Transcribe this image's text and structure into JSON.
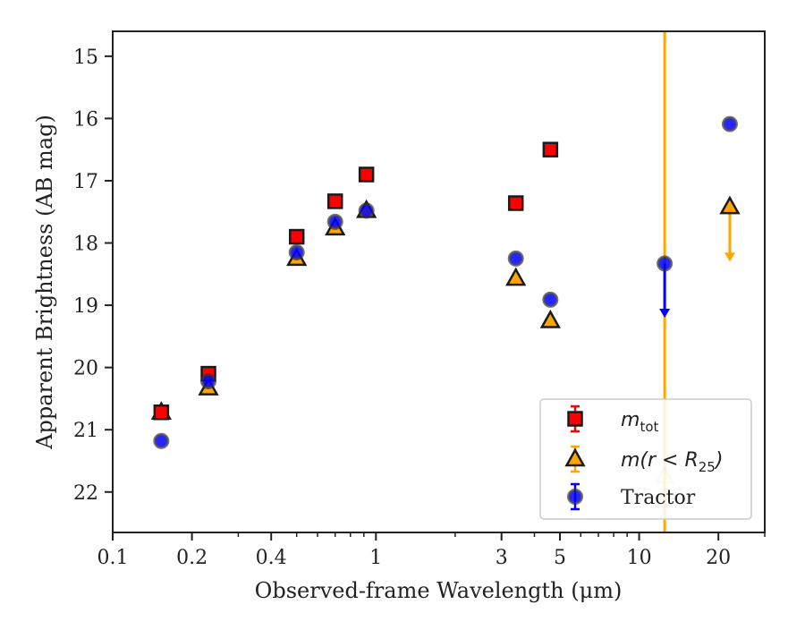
{
  "chart_data": {
    "type": "scatter",
    "xlabel": "Observed-frame Wavelength (μm)",
    "ylabel": "Apparent Brightness (AB mag)",
    "xscale": "log",
    "xlim": [
      0.1,
      30
    ],
    "ylim": [
      22.65,
      14.6
    ],
    "y_inverted": true,
    "x_tick_labels": [
      {
        "value": 0.1,
        "label": "0.1"
      },
      {
        "value": 0.2,
        "label": "0.2"
      },
      {
        "value": 0.4,
        "label": "0.4"
      },
      {
        "value": 1,
        "label": "1"
      },
      {
        "value": 3,
        "label": "3"
      },
      {
        "value": 5,
        "label": "5"
      },
      {
        "value": 10,
        "label": "10"
      },
      {
        "value": 20,
        "label": "20"
      }
    ],
    "y_ticks": [
      15,
      16,
      17,
      18,
      19,
      20,
      21,
      22
    ],
    "grid": false,
    "legend_position": "lower-right",
    "vertical_line": {
      "x": 12.5,
      "color": "#ffa500"
    },
    "series": [
      {
        "name": "m_tot",
        "legend_parts": {
          "base": "m",
          "sub": "tot"
        },
        "marker": "square",
        "color": "#ff0000",
        "points": [
          {
            "x": 0.153,
            "y": 20.72
          },
          {
            "x": 0.231,
            "y": 20.1
          },
          {
            "x": 0.5,
            "y": 17.9
          },
          {
            "x": 0.7,
            "y": 17.33
          },
          {
            "x": 0.92,
            "y": 16.9
          },
          {
            "x": 3.4,
            "y": 17.36
          },
          {
            "x": 4.6,
            "y": 16.5
          }
        ]
      },
      {
        "name": "m(r < R25)",
        "legend_parts": {
          "base": "m(r < R",
          "sub": "25",
          "tail": ")"
        },
        "marker": "triangle",
        "color": "#ffa500",
        "points": [
          {
            "x": 0.153,
            "y": 20.72
          },
          {
            "x": 0.231,
            "y": 20.33
          },
          {
            "x": 0.5,
            "y": 18.25
          },
          {
            "x": 0.7,
            "y": 17.76
          },
          {
            "x": 0.92,
            "y": 17.48
          },
          {
            "x": 3.4,
            "y": 18.57
          },
          {
            "x": 4.6,
            "y": 19.25
          },
          {
            "x": 12.5,
            "y": 21.75,
            "faint": true
          },
          {
            "x": 22.1,
            "y": 17.42,
            "upper_limit": true,
            "arrow_to": 18.3
          }
        ]
      },
      {
        "name": "Tractor",
        "legend_parts": {
          "base": "Tractor"
        },
        "marker": "circle",
        "color": "#0000ff",
        "points": [
          {
            "x": 0.153,
            "y": 21.18
          },
          {
            "x": 0.231,
            "y": 20.22
          },
          {
            "x": 0.5,
            "y": 18.15
          },
          {
            "x": 0.7,
            "y": 17.66
          },
          {
            "x": 0.92,
            "y": 17.48
          },
          {
            "x": 3.4,
            "y": 18.25
          },
          {
            "x": 4.6,
            "y": 18.91
          },
          {
            "x": 12.5,
            "y": 18.33,
            "upper_limit": true,
            "arrow_to": 19.2
          },
          {
            "x": 22.1,
            "y": 16.09
          }
        ]
      }
    ]
  }
}
